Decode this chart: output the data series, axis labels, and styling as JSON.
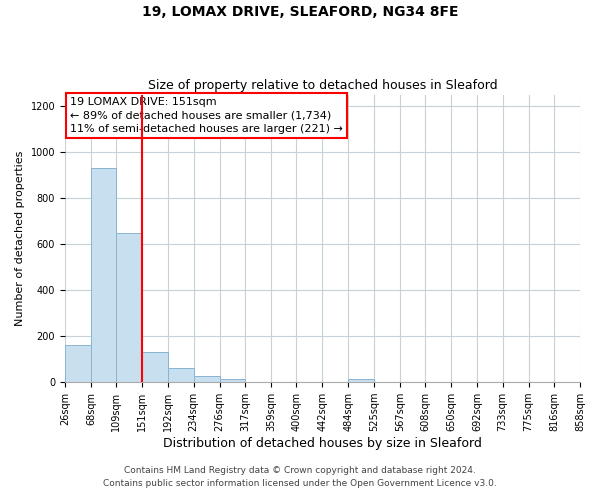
{
  "title": "19, LOMAX DRIVE, SLEAFORD, NG34 8FE",
  "subtitle": "Size of property relative to detached houses in Sleaford",
  "xlabel": "Distribution of detached houses by size in Sleaford",
  "ylabel": "Number of detached properties",
  "bar_edges": [
    26,
    68,
    109,
    151,
    192,
    234,
    276,
    317,
    359,
    400,
    442,
    484,
    525,
    567,
    608,
    650,
    692,
    733,
    775,
    816,
    858
  ],
  "bar_heights": [
    160,
    930,
    650,
    130,
    60,
    28,
    12,
    0,
    0,
    0,
    0,
    15,
    0,
    0,
    0,
    0,
    0,
    0,
    0,
    0
  ],
  "bar_color": "#c8dff0",
  "bar_edgecolor": "#8ab4d0",
  "property_line_x": 151,
  "property_line_color": "red",
  "annotation_line1": "19 LOMAX DRIVE: 151sqm",
  "annotation_line2": "← 89% of detached houses are smaller (1,734)",
  "annotation_line3": "11% of semi-detached houses are larger (221) →",
  "ylim": [
    0,
    1250
  ],
  "yticks": [
    0,
    200,
    400,
    600,
    800,
    1000,
    1200
  ],
  "xtick_labels": [
    "26sqm",
    "68sqm",
    "109sqm",
    "151sqm",
    "192sqm",
    "234sqm",
    "276sqm",
    "317sqm",
    "359sqm",
    "400sqm",
    "442sqm",
    "484sqm",
    "525sqm",
    "567sqm",
    "608sqm",
    "650sqm",
    "692sqm",
    "733sqm",
    "775sqm",
    "816sqm",
    "858sqm"
  ],
  "footer_line1": "Contains HM Land Registry data © Crown copyright and database right 2024.",
  "footer_line2": "Contains public sector information licensed under the Open Government Licence v3.0.",
  "background_color": "#ffffff",
  "grid_color": "#c8d0d8",
  "title_fontsize": 10,
  "subtitle_fontsize": 9,
  "xlabel_fontsize": 9,
  "ylabel_fontsize": 8,
  "annotation_fontsize": 8,
  "footer_fontsize": 6.5,
  "tick_fontsize": 7
}
